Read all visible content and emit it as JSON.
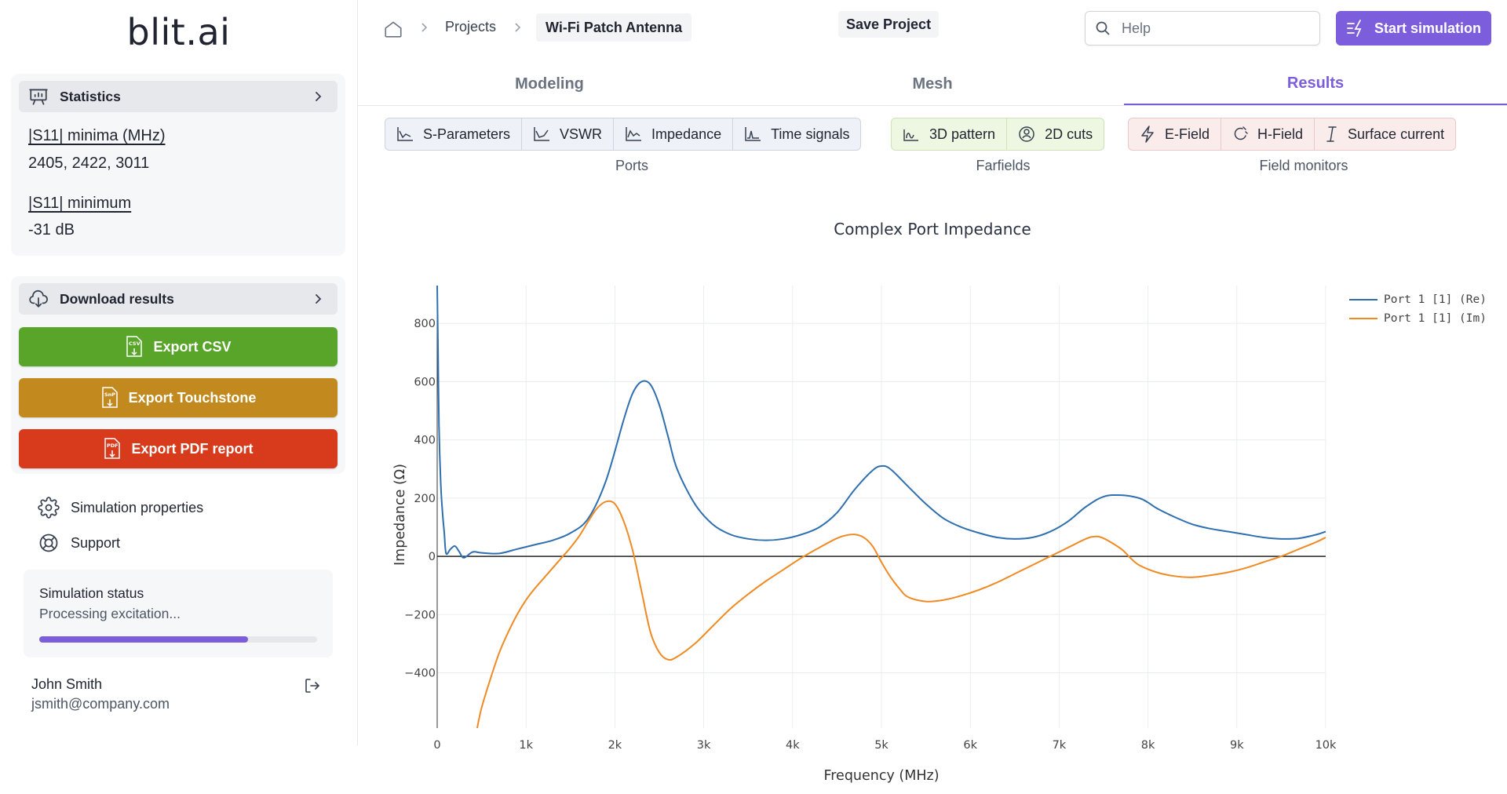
{
  "app": {
    "logo": "blit.ai"
  },
  "sidebar": {
    "statistics": {
      "title": "Statistics",
      "items": [
        {
          "label": "|S11| minima (MHz)",
          "value": "2405, 2422, 3011"
        },
        {
          "label": "|S11| minimum",
          "value": "-31 dB"
        }
      ]
    },
    "download": {
      "title": "Download results",
      "export_csv": "Export CSV",
      "export_touchstone": "Export Touchstone",
      "export_pdf": "Export PDF report",
      "csv_icon_text": "CSV",
      "snp_icon_text": "SnP",
      "pdf_icon_text": "PDF"
    },
    "links": {
      "simulation_properties": "Simulation properties",
      "support": "Support"
    },
    "status": {
      "title": "Simulation status",
      "text": "Processing excitation...",
      "progress": 0.75
    },
    "user": {
      "name": "John Smith",
      "email": "jsmith@company.com"
    }
  },
  "header": {
    "breadcrumb": {
      "projects": "Projects",
      "current": "Wi-Fi Patch Antenna"
    },
    "save_label": "Save Project",
    "search_placeholder": "Help",
    "start_label": "Start simulation"
  },
  "tabs": [
    {
      "label": "Modeling",
      "active": false
    },
    {
      "label": "Mesh",
      "active": false
    },
    {
      "label": "Results",
      "active": true
    }
  ],
  "toolbar": {
    "ports": {
      "label": "Ports",
      "buttons": [
        "S-Parameters",
        "VSWR",
        "Impedance",
        "Time signals"
      ]
    },
    "farfields": {
      "label": "Farfields",
      "buttons": [
        "3D pattern",
        "2D cuts"
      ]
    },
    "field_monitors": {
      "label": "Field monitors",
      "buttons": [
        "E-Field",
        "H-Field",
        "Surface current"
      ]
    }
  },
  "colors": {
    "accent": "#7c5ddc",
    "csv": "#58a52a",
    "touchstone": "#c28a1e",
    "pdf": "#d83a1c",
    "re": "#2f6fb0",
    "im": "#f08a24"
  },
  "chart_data": {
    "type": "line",
    "title": "Complex Port Impedance",
    "xlabel": "Frequency (MHz)",
    "ylabel": "Impedance (Ω)",
    "xlim": [
      0,
      10000
    ],
    "ylim": [
      -590,
      930
    ],
    "xticks": [
      0,
      1000,
      2000,
      3000,
      4000,
      5000,
      6000,
      7000,
      8000,
      9000,
      10000
    ],
    "xtick_labels": [
      "0",
      "1k",
      "2k",
      "3k",
      "4k",
      "5k",
      "6k",
      "7k",
      "8k",
      "9k",
      "10k"
    ],
    "yticks": [
      -400,
      -200,
      0,
      200,
      400,
      600,
      800
    ],
    "ytick_labels": [
      "−400",
      "−200",
      "0",
      "200",
      "400",
      "600",
      "800"
    ],
    "grid": true,
    "legend_position": "top-right",
    "series": [
      {
        "name": "Port 1 [1] (Re)",
        "x": [
          0,
          10,
          20,
          40,
          60,
          80,
          100,
          150,
          200,
          250,
          300,
          400,
          500,
          700,
          900,
          1100,
          1300,
          1500,
          1700,
          1900,
          2100,
          2200,
          2300,
          2400,
          2500,
          2600,
          2700,
          2900,
          3100,
          3300,
          3500,
          3700,
          3900,
          4100,
          4300,
          4500,
          4700,
          4900,
          5000,
          5100,
          5300,
          5500,
          5700,
          5900,
          6100,
          6300,
          6500,
          6700,
          6900,
          7100,
          7300,
          7500,
          7700,
          7900,
          8000,
          8100,
          8300,
          8500,
          8700,
          8900,
          9100,
          9300,
          9500,
          9700,
          9900,
          10000
        ],
        "values": [
          930,
          700,
          450,
          250,
          150,
          80,
          10,
          25,
          35,
          15,
          -5,
          15,
          12,
          10,
          25,
          40,
          55,
          80,
          130,
          260,
          470,
          560,
          600,
          590,
          520,
          410,
          300,
          180,
          110,
          75,
          60,
          55,
          60,
          75,
          100,
          150,
          230,
          295,
          310,
          300,
          240,
          180,
          130,
          100,
          80,
          65,
          60,
          65,
          85,
          120,
          170,
          205,
          210,
          200,
          185,
          165,
          135,
          110,
          95,
          85,
          75,
          65,
          60,
          62,
          75,
          85
        ]
      },
      {
        "name": "Port 1 [1] (Im)",
        "x": [
          450,
          500,
          600,
          700,
          800,
          900,
          1000,
          1100,
          1200,
          1300,
          1400,
          1500,
          1600,
          1700,
          1800,
          1900,
          2000,
          2100,
          2200,
          2300,
          2400,
          2500,
          2600,
          2700,
          2900,
          3100,
          3300,
          3500,
          3700,
          3900,
          4100,
          4300,
          4500,
          4600,
          4700,
          4800,
          4900,
          5000,
          5100,
          5200,
          5300,
          5500,
          5700,
          5900,
          6100,
          6300,
          6500,
          6700,
          6900,
          7100,
          7300,
          7400,
          7500,
          7700,
          7800,
          7900,
          8100,
          8300,
          8500,
          8700,
          8900,
          9100,
          9300,
          9500,
          9700,
          9900,
          10000
        ],
        "values": [
          -590,
          -520,
          -420,
          -330,
          -260,
          -200,
          -150,
          -110,
          -75,
          -40,
          -5,
          30,
          70,
          120,
          165,
          188,
          180,
          120,
          20,
          -120,
          -260,
          -330,
          -355,
          -345,
          -300,
          -240,
          -180,
          -130,
          -85,
          -45,
          -5,
          30,
          62,
          72,
          75,
          65,
          35,
          -20,
          -70,
          -110,
          -140,
          -155,
          -150,
          -135,
          -115,
          -90,
          -60,
          -30,
          0,
          30,
          60,
          68,
          62,
          25,
          -5,
          -30,
          -55,
          -68,
          -72,
          -65,
          -55,
          -40,
          -20,
          0,
          25,
          50,
          65
        ]
      }
    ]
  }
}
